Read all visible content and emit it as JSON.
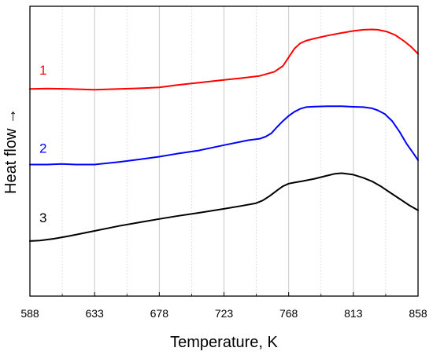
{
  "chart_data": {
    "type": "line",
    "xlabel": "Temperature, K",
    "ylabel": "Heat flow →",
    "xlim": [
      588,
      858
    ],
    "ylim": [
      0,
      100
    ],
    "x_ticks": [
      588,
      633,
      678,
      723,
      768,
      813,
      858
    ],
    "grid": {
      "major_x": true,
      "minor_x": true,
      "y": false
    },
    "y_ticks_shown": false,
    "series": [
      {
        "name": "1",
        "color": "#ff0000",
        "x": [
          588,
          600,
          615,
          633,
          650,
          665,
          678,
          690,
          705,
          723,
          735,
          748,
          758,
          764,
          768,
          772,
          776,
          780,
          786,
          795,
          805,
          813,
          820,
          826,
          830,
          836,
          842,
          848,
          853,
          858
        ],
        "y": [
          71.5,
          71.6,
          71.5,
          71.2,
          71.5,
          71.7,
          72.0,
          72.8,
          73.6,
          74.6,
          75.2,
          76.0,
          77.4,
          79.4,
          82.4,
          85.4,
          87.2,
          88.1,
          88.9,
          89.9,
          90.8,
          91.5,
          91.9,
          92.0,
          91.9,
          91.3,
          90.1,
          88.1,
          86.1,
          83.6
        ]
      },
      {
        "name": "2",
        "color": "#0000ff",
        "x": [
          588,
          600,
          610,
          620,
          633,
          650,
          665,
          678,
          690,
          705,
          723,
          740,
          748,
          752,
          756,
          760,
          764,
          768,
          772,
          776,
          780,
          786,
          795,
          805,
          813,
          820,
          826,
          830,
          835,
          840,
          845,
          850,
          855,
          858
        ],
        "y": [
          45.4,
          45.4,
          45.6,
          45.4,
          45.4,
          46.3,
          47.2,
          48.1,
          49.1,
          50.2,
          52.1,
          53.8,
          54.3,
          55.0,
          56.2,
          58.4,
          60.4,
          62.2,
          63.6,
          64.6,
          65.2,
          65.4,
          65.5,
          65.5,
          65.3,
          65.2,
          64.8,
          64.1,
          62.8,
          60.4,
          56.8,
          52.6,
          49.1,
          46.9
        ]
      },
      {
        "name": "3",
        "color": "#000000",
        "x": [
          588,
          595,
          605,
          615,
          633,
          650,
          665,
          678,
          690,
          705,
          723,
          735,
          745,
          750,
          755,
          760,
          764,
          768,
          772,
          778,
          786,
          795,
          800,
          805,
          813,
          820,
          826,
          832,
          838,
          845,
          852,
          858
        ],
        "y": [
          19.0,
          19.2,
          19.8,
          20.7,
          22.5,
          24.2,
          25.5,
          26.6,
          27.6,
          28.7,
          30.1,
          31.1,
          32.0,
          33.0,
          34.6,
          36.5,
          37.9,
          38.8,
          39.2,
          39.7,
          40.5,
          41.6,
          42.2,
          42.4,
          41.9,
          40.8,
          39.6,
          37.9,
          35.9,
          33.6,
          31.3,
          29.6
        ]
      }
    ]
  }
}
